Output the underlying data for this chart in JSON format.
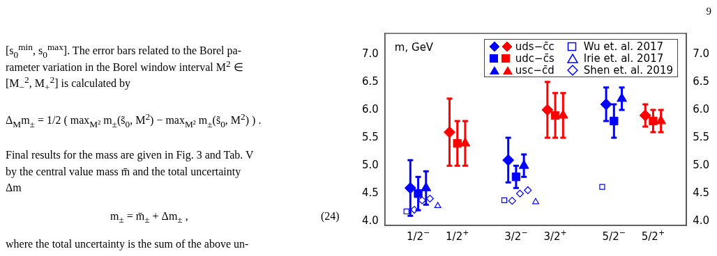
{
  "chart_data": {
    "type": "scatter",
    "ylabel": "m, GeV",
    "categories": [
      null,
      null,
      null,
      null,
      null,
      null,
      null,
      null,
      "1/2$^{−}$",
      null,
      null,
      null,
      null,
      null,
      null,
      null,
      null,
      null,
      "1/2$^{+}$",
      null,
      null,
      null,
      null,
      null,
      null,
      null,
      null,
      null,
      null,
      null,
      null,
      null,
      null,
      "3/2$^{−}$",
      null,
      null,
      null,
      null,
      null,
      null,
      null,
      null,
      null,
      "3/2$^{+}$",
      null,
      null,
      null,
      null,
      null,
      null,
      null,
      null,
      null,
      null,
      null,
      null,
      null,
      null,
      "5/2$^{−}$",
      null,
      null,
      null,
      null,
      null,
      null,
      null,
      null,
      null,
      "5/2$^{+}$",
      null,
      null,
      null,
      null,
      null,
      null,
      null,
      null
    ],
    "ylim": [
      3.93,
      7.37
    ],
    "yticks": [
      {
        "value": 4,
        "label": "4.0"
      },
      {
        "value": 4.5,
        "label": "4.5"
      },
      {
        "value": 5,
        "label": "5.0"
      },
      {
        "value": 5.5,
        "label": "5.5"
      },
      {
        "value": 6,
        "label": "6.0"
      },
      {
        "value": 6.5,
        "label": "6.5"
      },
      {
        "value": 7,
        "label": "7.0"
      }
    ],
    "y2lim": [
      3.93,
      7.37
    ],
    "y2ticks": [
      {
        "value": 4,
        "label": "4.0"
      },
      {
        "value": 4.5,
        "label": "4.5"
      },
      {
        "value": 5,
        "label": "5.0"
      },
      {
        "value": 5.5,
        "label": "5.5"
      },
      {
        "value": 6,
        "label": "6.0"
      },
      {
        "value": 6.5,
        "label": "6.5"
      },
      {
        "value": 7,
        "label": "7.0"
      }
    ],
    "grid": false,
    "legend": "top right",
    "series": [
      {
        "name": "uds−c̄c",
        "marker": "diamond",
        "values": [
          null,
          null,
          null,
          null,
          null,
          null,
          4.6,
          null,
          null,
          null,
          null,
          null,
          null,
          null,
          null,
          null,
          5.6,
          null,
          null,
          null,
          null,
          null,
          null,
          null,
          null,
          null,
          null,
          null,
          null,
          null,
          null,
          5.1,
          null,
          null,
          null,
          null,
          null,
          null,
          null,
          null,
          null,
          6.0,
          null,
          null,
          null,
          null,
          null,
          null,
          null,
          null,
          null,
          null,
          null,
          null,
          null,
          null,
          6.1,
          null,
          null,
          null,
          null,
          null,
          null,
          null,
          null,
          null,
          5.9,
          null,
          null,
          null,
          null,
          null,
          null,
          null,
          null,
          null,
          null
        ],
        "errors": [
          null,
          null,
          null,
          null,
          null,
          null,
          [
            4.1,
            5.1
          ],
          null,
          null,
          null,
          null,
          null,
          null,
          null,
          null,
          null,
          [
            5.0,
            6.2
          ],
          null,
          null,
          null,
          null,
          null,
          null,
          null,
          null,
          null,
          null,
          null,
          null,
          null,
          null,
          [
            4.7,
            5.5
          ],
          null,
          null,
          null,
          null,
          null,
          null,
          null,
          null,
          null,
          [
            5.5,
            6.5
          ],
          null,
          null,
          null,
          null,
          null,
          null,
          null,
          null,
          null,
          null,
          null,
          null,
          null,
          null,
          [
            5.8,
            6.4
          ],
          null,
          null,
          null,
          null,
          null,
          null,
          null,
          null,
          null,
          [
            5.7,
            6.1
          ],
          null,
          null,
          null,
          null,
          null,
          null,
          null,
          null,
          null,
          null
        ],
        "colors": [
          null,
          null,
          null,
          null,
          null,
          null,
          "#0000ff",
          null,
          null,
          null,
          null,
          null,
          null,
          null,
          null,
          null,
          "#ff0000",
          null,
          null,
          null,
          null,
          null,
          null,
          null,
          null,
          null,
          null,
          null,
          null,
          null,
          null,
          "#0000ff",
          null,
          null,
          null,
          null,
          null,
          null,
          null,
          null,
          null,
          "#ff0000",
          null,
          null,
          null,
          null,
          null,
          null,
          null,
          null,
          null,
          null,
          null,
          null,
          null,
          null,
          "#0000ff",
          null,
          null,
          null,
          null,
          null,
          null,
          null,
          null,
          null,
          "#ff0000",
          null,
          null,
          null,
          null,
          null,
          null,
          null,
          null,
          null,
          null
        ]
      },
      {
        "name": "udc−c̄s",
        "marker": "square",
        "values": [
          null,
          null,
          null,
          null,
          null,
          null,
          null,
          null,
          4.5,
          null,
          null,
          null,
          null,
          null,
          null,
          null,
          null,
          null,
          5.4,
          null,
          null,
          null,
          null,
          null,
          null,
          null,
          null,
          null,
          null,
          null,
          null,
          null,
          null,
          4.8,
          null,
          null,
          null,
          null,
          null,
          null,
          null,
          null,
          null,
          5.9,
          null,
          null,
          null,
          null,
          null,
          null,
          null,
          null,
          null,
          null,
          null,
          null,
          null,
          null,
          5.8,
          null,
          null,
          null,
          null,
          null,
          null,
          null,
          null,
          null,
          5.8,
          null,
          null,
          null,
          null,
          null,
          null,
          null,
          null
        ],
        "errors": [
          null,
          null,
          null,
          null,
          null,
          null,
          null,
          null,
          [
            4.2,
            4.8
          ],
          null,
          null,
          null,
          null,
          null,
          null,
          null,
          null,
          null,
          [
            5.0,
            5.8
          ],
          null,
          null,
          null,
          null,
          null,
          null,
          null,
          null,
          null,
          null,
          null,
          null,
          null,
          null,
          [
            4.6,
            5.0
          ],
          null,
          null,
          null,
          null,
          null,
          null,
          null,
          null,
          null,
          [
            5.5,
            6.3
          ],
          null,
          null,
          null,
          null,
          null,
          null,
          null,
          null,
          null,
          null,
          null,
          null,
          null,
          null,
          [
            5.5,
            6.1
          ],
          null,
          null,
          null,
          null,
          null,
          null,
          null,
          null,
          null,
          [
            5.6,
            6.0
          ],
          null,
          null,
          null,
          null,
          null,
          null,
          null,
          null
        ],
        "colors": [
          null,
          null,
          null,
          null,
          null,
          null,
          null,
          null,
          "#0000ff",
          null,
          null,
          null,
          null,
          null,
          null,
          null,
          null,
          null,
          "#ff0000",
          null,
          null,
          null,
          null,
          null,
          null,
          null,
          null,
          null,
          null,
          null,
          null,
          null,
          null,
          "#0000ff",
          null,
          null,
          null,
          null,
          null,
          null,
          null,
          null,
          null,
          "#ff0000",
          null,
          null,
          null,
          null,
          null,
          null,
          null,
          null,
          null,
          null,
          null,
          null,
          null,
          null,
          "#0000ff",
          null,
          null,
          null,
          null,
          null,
          null,
          null,
          null,
          null,
          "#ff0000",
          null,
          null,
          null,
          null,
          null,
          null,
          null,
          null
        ]
      },
      {
        "name": "usc−c̄d",
        "marker": "triangle",
        "values": [
          null,
          null,
          null,
          null,
          null,
          null,
          null,
          null,
          null,
          null,
          4.6,
          null,
          null,
          null,
          null,
          null,
          null,
          null,
          null,
          null,
          5.4,
          null,
          null,
          null,
          null,
          null,
          null,
          null,
          null,
          null,
          null,
          null,
          null,
          null,
          null,
          5.0,
          null,
          null,
          null,
          null,
          null,
          null,
          null,
          null,
          null,
          5.9,
          null,
          null,
          null,
          null,
          null,
          null,
          null,
          null,
          null,
          null,
          null,
          null,
          null,
          null,
          6.2,
          null,
          null,
          null,
          null,
          null,
          null,
          null,
          null,
          null,
          5.8,
          null,
          null,
          null,
          null,
          null,
          null
        ],
        "errors": [
          null,
          null,
          null,
          null,
          null,
          null,
          null,
          null,
          null,
          null,
          [
            4.3,
            4.9
          ],
          null,
          null,
          null,
          null,
          null,
          null,
          null,
          null,
          null,
          [
            5.0,
            5.8
          ],
          null,
          null,
          null,
          null,
          null,
          null,
          null,
          null,
          null,
          null,
          null,
          null,
          null,
          null,
          [
            4.8,
            5.2
          ],
          null,
          null,
          null,
          null,
          null,
          null,
          null,
          null,
          null,
          [
            5.5,
            6.3
          ],
          null,
          null,
          null,
          null,
          null,
          null,
          null,
          null,
          null,
          null,
          null,
          null,
          null,
          null,
          [
            6.0,
            6.4
          ],
          null,
          null,
          null,
          null,
          null,
          null,
          null,
          null,
          null,
          [
            5.6,
            6.0
          ],
          null,
          null,
          null,
          null,
          null,
          null
        ],
        "colors": [
          null,
          null,
          null,
          null,
          null,
          null,
          null,
          null,
          null,
          null,
          "#0000ff",
          null,
          null,
          null,
          null,
          null,
          null,
          null,
          null,
          null,
          "#ff0000",
          null,
          null,
          null,
          null,
          null,
          null,
          null,
          null,
          null,
          null,
          null,
          null,
          null,
          null,
          "#0000ff",
          null,
          null,
          null,
          null,
          null,
          null,
          null,
          null,
          null,
          "#ff0000",
          null,
          null,
          null,
          null,
          null,
          null,
          null,
          null,
          null,
          null,
          null,
          null,
          null,
          null,
          "#0000ff",
          null,
          null,
          null,
          null,
          null,
          null,
          null,
          null,
          null,
          "#ff0000",
          null,
          null,
          null,
          null,
          null,
          null
        ]
      },
      {
        "name": "Wu et. al. 2017",
        "marker": "square",
        "color": "#0000ff",
        "values": [
          null,
          null,
          null,
          null,
          null,
          4.18,
          null,
          null,
          null,
          null,
          null,
          null,
          null,
          null,
          null,
          null,
          null,
          null,
          null,
          null,
          null,
          null,
          null,
          null,
          null,
          null,
          null,
          null,
          null,
          null,
          4.38,
          null,
          null,
          null,
          null,
          null,
          null,
          null,
          null,
          null,
          null,
          null,
          null,
          null,
          null,
          null,
          null,
          null,
          null,
          null,
          null,
          null,
          null,
          null,
          null,
          4.62,
          null,
          null,
          null,
          null,
          null,
          null,
          null,
          null,
          null,
          null,
          null,
          null,
          null,
          null,
          null,
          null,
          null,
          null,
          null,
          null,
          null
        ]
      },
      {
        "name": "Irie et. al. 2017",
        "marker": "triangle",
        "color": "#0000ff",
        "values": [
          null,
          null,
          null,
          null,
          null,
          null,
          null,
          null,
          null,
          null,
          null,
          null,
          null,
          4.28,
          null,
          null,
          null,
          null,
          null,
          null,
          null,
          null,
          null,
          null,
          null,
          null,
          null,
          null,
          null,
          null,
          null,
          null,
          null,
          null,
          null,
          null,
          null,
          null,
          4.35,
          null,
          null,
          null,
          null,
          null,
          null,
          null,
          null,
          null,
          null,
          null,
          null,
          null,
          null,
          null,
          null,
          null,
          null,
          null,
          null,
          null,
          null,
          null,
          null,
          null,
          null,
          null,
          null,
          null,
          null,
          null,
          null,
          null,
          null,
          null,
          null,
          null,
          null
        ]
      },
      {
        "name": "Shen et. al. 2019",
        "marker": "diamond",
        "color": "#0000ff",
        "values": [
          null,
          null,
          null,
          null,
          null,
          null,
          null,
          4.21,
          null,
          4.38,
          null,
          4.41,
          null,
          null,
          null,
          null,
          null,
          null,
          null,
          null,
          null,
          null,
          null,
          null,
          null,
          null,
          null,
          null,
          null,
          null,
          null,
          null,
          4.37,
          null,
          4.5,
          null,
          4.56,
          null,
          null,
          null,
          null,
          null,
          null,
          null,
          null,
          null,
          null,
          null,
          null,
          null,
          null,
          null,
          null,
          null,
          null,
          null,
          null,
          null,
          null,
          null,
          null,
          null,
          null,
          null,
          null,
          null,
          null,
          null,
          null,
          null,
          null,
          null,
          null,
          null,
          null,
          null,
          null
        ]
      }
    ],
    "annotations": [
      "9",
      "[s$_{0}$$^{min}$, s$_{0}$$^{max}$].  The error bars related to the Borel pa-",
      "rameter variation in the Borel window interval M$^{2}$ ∈",
      "[M$_{−}$$^{2}$, M$_{+}$$^{2}$] is calculated by",
      "Δ$_{M}$m$_{±}$  =  1/2 ( max$_{M²}$ m$_{±}$(s̃$_{0}$, M$^{2}$) − max$_{M²}$ m$_{±}$(s̃$_{0}$, M$^{2}$) ) .",
      "Final results for the mass are given in Fig. 3 and Tab. V",
      "by the central value mass m̄ and the total uncertainty",
      "Δm",
      "m$_{±}$ = m̄$_{±}$ + Δm$_{±}$ ,",
      "(24)",
      "where the total uncertainty is the sum of the above un-"
    ]
  }
}
